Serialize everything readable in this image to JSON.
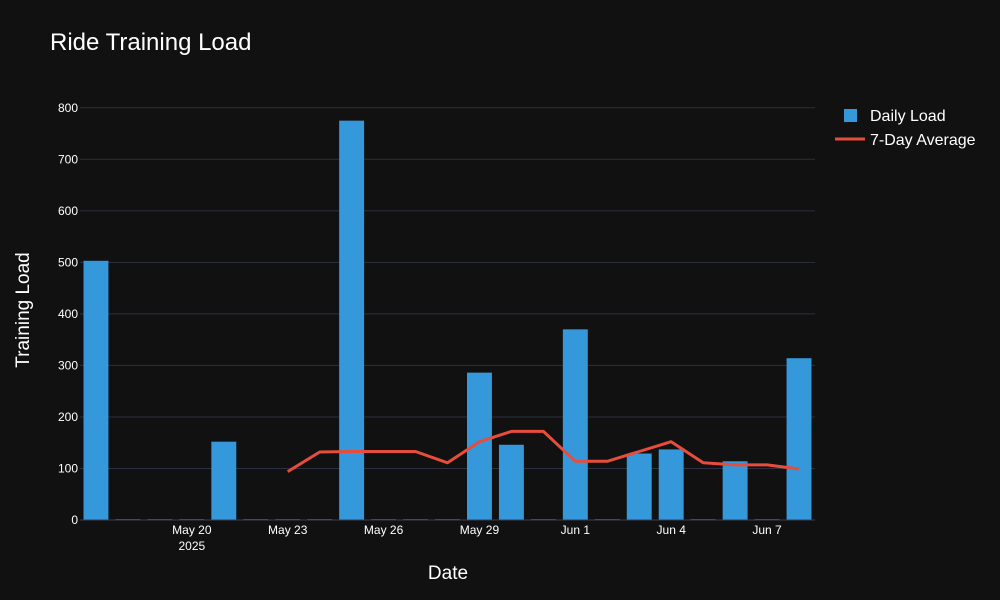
{
  "chart_data": {
    "type": "bar",
    "title": "Ride Training Load",
    "xlabel": "Date",
    "ylabel": "Training Load",
    "ylim": [
      0,
      850
    ],
    "y_ticks": [
      0,
      100,
      200,
      300,
      400,
      500,
      600,
      700,
      800
    ],
    "x_ticks": [
      {
        "date": "2025-05-20",
        "label": "May 20",
        "sublabel": "2025"
      },
      {
        "date": "2025-05-23",
        "label": "May 23",
        "sublabel": ""
      },
      {
        "date": "2025-05-26",
        "label": "May 26",
        "sublabel": ""
      },
      {
        "date": "2025-05-29",
        "label": "May 29",
        "sublabel": ""
      },
      {
        "date": "2025-06-01",
        "label": "Jun 1",
        "sublabel": ""
      },
      {
        "date": "2025-06-04",
        "label": "Jun 4",
        "sublabel": ""
      },
      {
        "date": "2025-06-07",
        "label": "Jun 7",
        "sublabel": ""
      }
    ],
    "grid": true,
    "legend_position": "top-right",
    "colors": {
      "background": "#111111",
      "grid": "#2c3040",
      "bar": "#3498db",
      "line": "#e74c3c",
      "text": "#ffffff"
    },
    "series": [
      {
        "name": "Daily Load",
        "kind": "bar",
        "x": [
          "2025-05-17",
          "2025-05-18",
          "2025-05-19",
          "2025-05-20",
          "2025-05-21",
          "2025-05-22",
          "2025-05-23",
          "2025-05-24",
          "2025-05-25",
          "2025-05-26",
          "2025-05-27",
          "2025-05-28",
          "2025-05-29",
          "2025-05-30",
          "2025-05-31",
          "2025-06-01",
          "2025-06-02",
          "2025-06-03",
          "2025-06-04",
          "2025-06-05",
          "2025-06-06",
          "2025-06-07",
          "2025-06-08"
        ],
        "values": [
          503,
          0,
          0,
          0,
          152,
          0,
          0,
          0,
          775,
          0,
          0,
          0,
          286,
          146,
          0,
          370,
          0,
          129,
          137,
          0,
          114,
          0,
          314
        ]
      },
      {
        "name": "7-Day Average",
        "kind": "line",
        "x": [
          "2025-05-23",
          "2025-05-24",
          "2025-05-25",
          "2025-05-26",
          "2025-05-27",
          "2025-05-28",
          "2025-05-29",
          "2025-05-30",
          "2025-05-31",
          "2025-06-01",
          "2025-06-02",
          "2025-06-03",
          "2025-06-04",
          "2025-06-05",
          "2025-06-06",
          "2025-06-07",
          "2025-06-08"
        ],
        "values": [
          94,
          132,
          133,
          133,
          133,
          111,
          152,
          172,
          172,
          114,
          114,
          133,
          152,
          111,
          107,
          107,
          99
        ]
      }
    ]
  }
}
